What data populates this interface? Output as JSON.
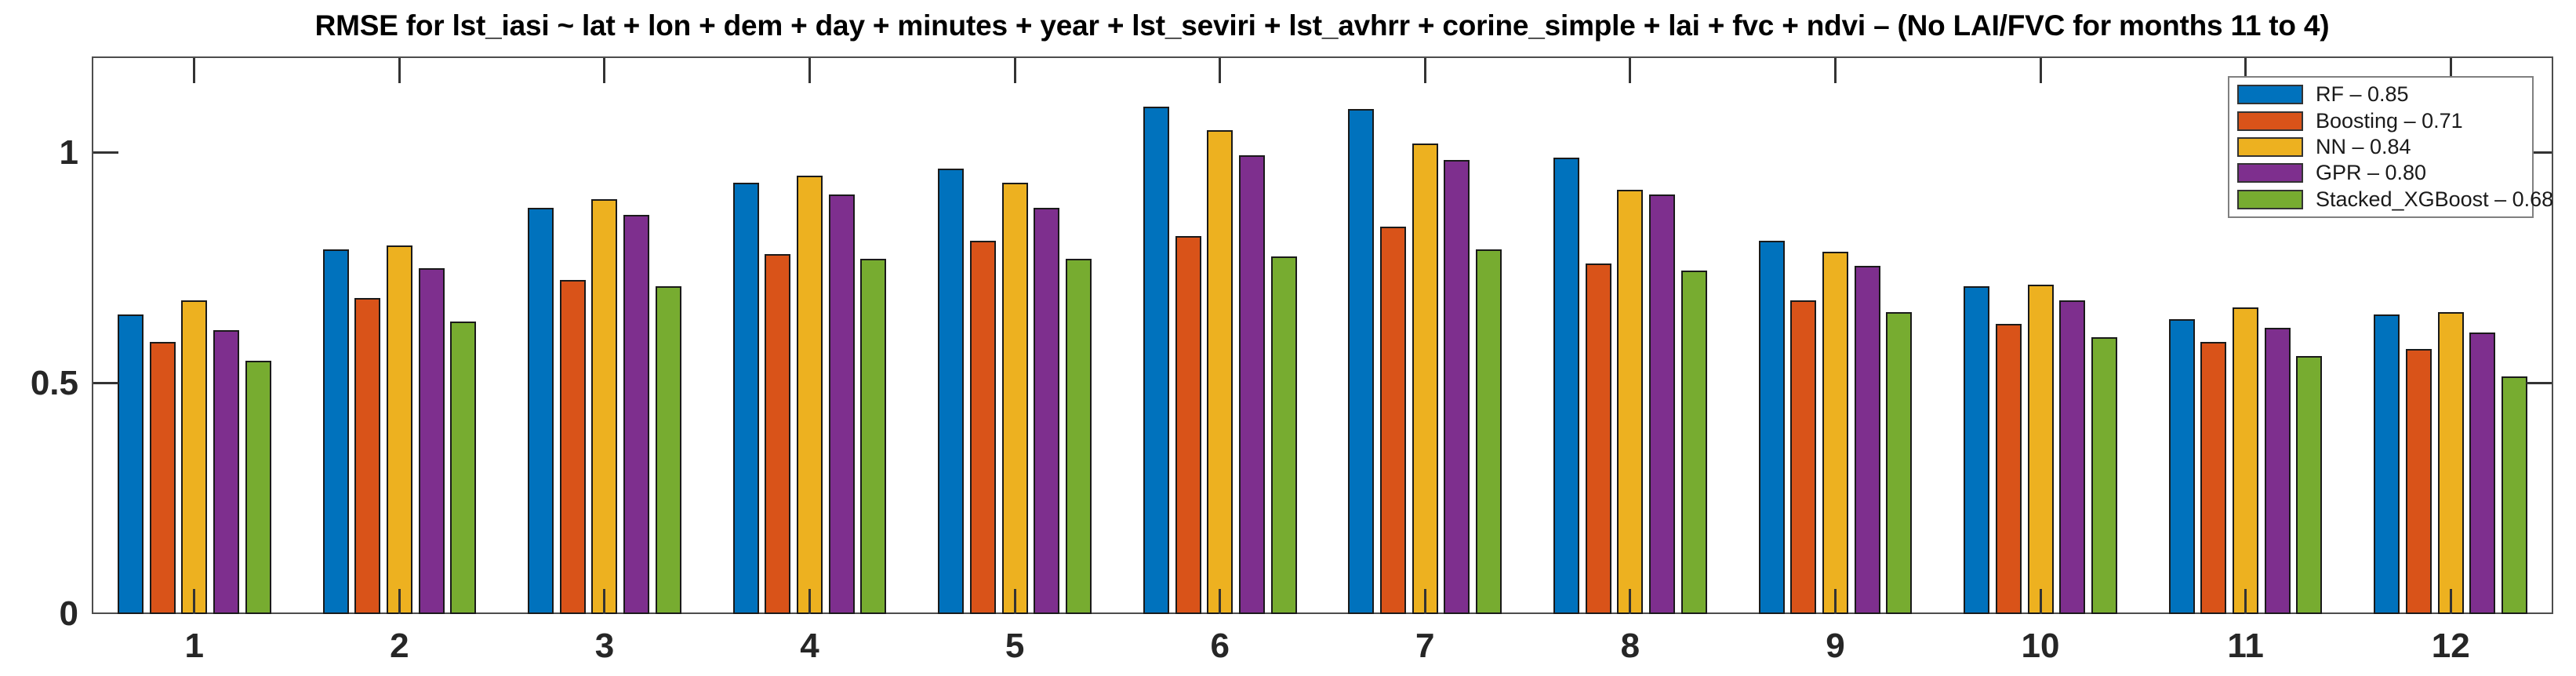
{
  "title": "RMSE for lst_iasi ~ lat + lon + dem + day + minutes + year + lst_seviri + lst_avhrr + corine_simple + lai + fvc + ndvi – (No LAI/FVC for months 11 to 4)",
  "chart_data": {
    "type": "bar",
    "title": "RMSE for lst_iasi ~ lat + lon + dem + day + minutes + year + lst_seviri + lst_avhrr + corine_simple + lai + fvc + ndvi – (No LAI/FVC for months 11 to 4)",
    "xlabel": "",
    "ylabel": "",
    "categories": [
      "1",
      "2",
      "3",
      "4",
      "5",
      "6",
      "7",
      "8",
      "9",
      "10",
      "11",
      "12"
    ],
    "ylim": [
      0,
      1.209
    ],
    "yticks": [
      0,
      0.5,
      1
    ],
    "ytick_labels": [
      "0",
      "0.5",
      "1"
    ],
    "grid": false,
    "legend_position": "top-right-inside",
    "series": [
      {
        "name": "RF",
        "mean": 0.85,
        "legend_label": "RF – 0.85",
        "color": "#0072BD",
        "values": [
          0.65,
          0.79,
          0.88,
          0.935,
          0.965,
          1.1,
          1.095,
          0.99,
          0.81,
          0.71,
          0.64,
          0.65
        ]
      },
      {
        "name": "Boosting",
        "mean": 0.71,
        "legend_label": "Boosting – 0.71",
        "color": "#D95319",
        "values": [
          0.59,
          0.685,
          0.725,
          0.78,
          0.81,
          0.82,
          0.84,
          0.76,
          0.68,
          0.63,
          0.59,
          0.575
        ]
      },
      {
        "name": "NN",
        "mean": 0.84,
        "legend_label": "NN – 0.84",
        "color": "#EDB120",
        "values": [
          0.68,
          0.8,
          0.9,
          0.95,
          0.935,
          1.05,
          1.02,
          0.92,
          0.785,
          0.715,
          0.665,
          0.655
        ]
      },
      {
        "name": "GPR",
        "mean": 0.8,
        "legend_label": "GPR – 0.80",
        "color": "#7E2F8E",
        "values": [
          0.615,
          0.75,
          0.865,
          0.91,
          0.88,
          0.995,
          0.985,
          0.91,
          0.755,
          0.68,
          0.62,
          0.61
        ]
      },
      {
        "name": "Stacked_XGBoost",
        "mean": 0.68,
        "legend_label": "Stacked_XGBoost – 0.68",
        "color": "#77AC30",
        "values": [
          0.55,
          0.635,
          0.71,
          0.77,
          0.77,
          0.775,
          0.79,
          0.745,
          0.655,
          0.6,
          0.56,
          0.515
        ]
      }
    ]
  },
  "colors": {
    "axis_box": "#4d4d4d",
    "tick": "#333333",
    "tick_label": "#262626",
    "title_text": "#000000",
    "legend_border": "#808080",
    "background": "#ffffff"
  }
}
